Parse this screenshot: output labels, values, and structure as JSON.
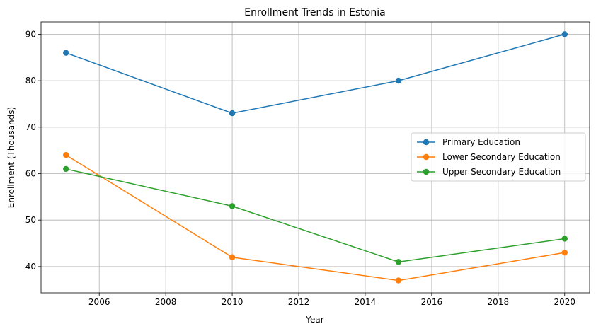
{
  "chart_data": {
    "type": "line",
    "title": "Enrollment Trends in Estonia",
    "xlabel": "Year",
    "ylabel": "Enrollment (Thousands)",
    "x": [
      2005,
      2010,
      2015,
      2020
    ],
    "xlim": [
      2004.25,
      2020.75
    ],
    "ylim": [
      34.35,
      92.65
    ],
    "xticks": [
      2006,
      2008,
      2010,
      2012,
      2014,
      2016,
      2018,
      2020
    ],
    "yticks": [
      40,
      50,
      60,
      70,
      80,
      90
    ],
    "grid": true,
    "legend_position": "center-right",
    "series": [
      {
        "name": "Primary Education",
        "color": "#1f77b4",
        "values": [
          86,
          73,
          80,
          90
        ]
      },
      {
        "name": "Lower Secondary Education",
        "color": "#ff7f0e",
        "values": [
          64,
          42,
          37,
          43
        ]
      },
      {
        "name": "Upper Secondary Education",
        "color": "#2ca02c",
        "values": [
          61,
          53,
          41,
          46
        ]
      }
    ]
  }
}
